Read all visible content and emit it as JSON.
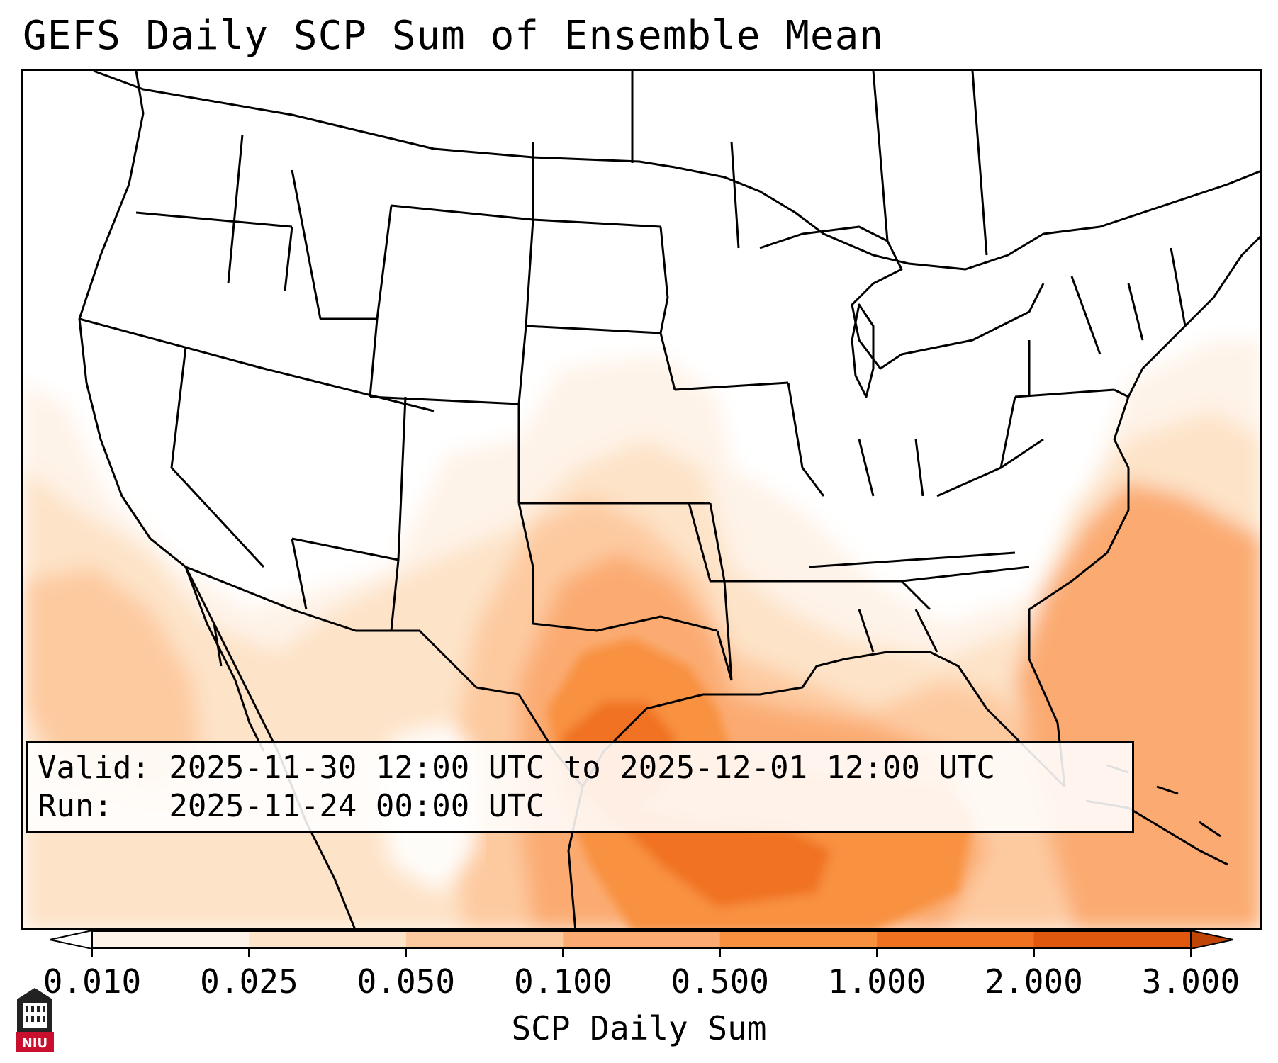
{
  "title": "GEFS Daily SCP Sum of Ensemble Mean",
  "valid_line": "Valid: 2025-11-30 12:00 UTC to 2025-12-01 12:00 UTC",
  "run_line": "Run:   2025-11-24 00:00 UTC",
  "colorbar": {
    "label": "SCP Daily Sum",
    "ticks": [
      "0.010",
      "0.025",
      "0.050",
      "0.100",
      "0.500",
      "1.000",
      "2.000",
      "3.000"
    ],
    "colors": [
      "#fef3e8",
      "#fde3c8",
      "#fdcaa0",
      "#fbab72",
      "#f8913f",
      "#f07220",
      "#e0580e",
      "#c04406"
    ],
    "extend": "both"
  },
  "map": {
    "field": "SCP Daily Sum",
    "highest_values_over": [
      "Texas",
      "Gulf of Mexico"
    ],
    "elevated_values_over": [
      "Oklahoma",
      "Louisiana",
      "Florida",
      "Western Atlantic",
      "Eastern Pacific"
    ]
  },
  "logo": {
    "text": "NIU",
    "icon": "niu-seal-icon",
    "color": "#c8102e"
  }
}
